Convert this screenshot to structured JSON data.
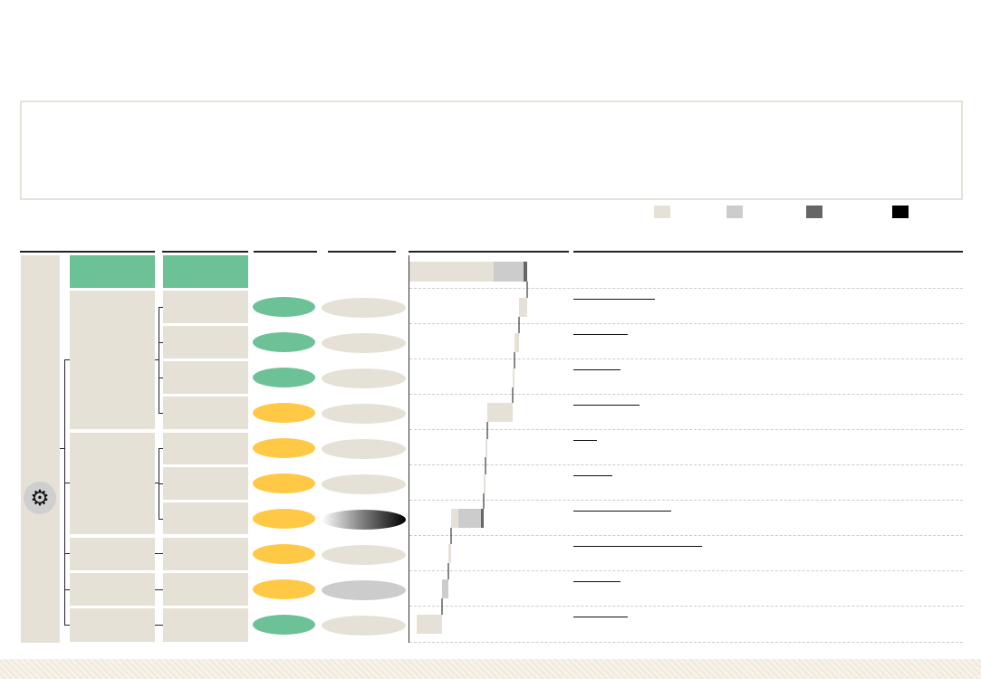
{
  "palette": {
    "green": "#6cc197",
    "yellow": "#ffc845",
    "beige": "#e6e1d6",
    "light_gray": "#cccccc",
    "dark_gray": "#666666",
    "black": "#000000"
  },
  "icons": {
    "gear": "gear-icon"
  },
  "legend": [
    {
      "color": "#e6e1d6"
    },
    {
      "color": "#cccccc"
    },
    {
      "color": "#666666"
    },
    {
      "color": "#000000"
    }
  ],
  "rows": [
    {
      "status": "#6cc197",
      "level": "#e6e1d6",
      "link_fraction": 0.21
    },
    {
      "status": "#6cc197",
      "level": "#e6e1d6",
      "link_fraction": 0.14
    },
    {
      "status": "#6cc197",
      "level": "#e6e1d6",
      "link_fraction": 0.12
    },
    {
      "status": "#ffc845",
      "level": "#e6e1d6",
      "link_fraction": 0.17
    },
    {
      "status": "#ffc845",
      "level": "#e6e1d6",
      "link_fraction": 0.06
    },
    {
      "status": "#ffc845",
      "level": "#e6e1d6",
      "link_fraction": 0.1
    },
    {
      "status": "#ffc845",
      "level": "gradient",
      "link_fraction": 0.25
    },
    {
      "status": "#ffc845",
      "level": "#e6e1d6",
      "link_fraction": 0.33
    },
    {
      "status": "#ffc845",
      "level": "#cccccc",
      "link_fraction": 0.12
    },
    {
      "status": "#6cc197",
      "level": "#e6e1d6",
      "link_fraction": 0.14
    }
  ],
  "chart_data": {
    "type": "bar",
    "orientation": "horizontal-waterfall",
    "total": {
      "segments": [
        {
          "color": "#e6e1d6",
          "value": 93
        },
        {
          "color": "#cccccc",
          "value": 33
        },
        {
          "color": "#666666",
          "value": 4
        }
      ]
    },
    "steps": [
      {
        "color": "#e6e1d6",
        "value": 9
      },
      {
        "color": "#e6e1d6",
        "value": 5
      },
      {
        "color": "#e6e1d6",
        "value": 2
      },
      {
        "color": "#e6e1d6",
        "value": 28
      },
      {
        "color": "#e6e1d6",
        "value": 2
      },
      {
        "color": "#e6e1d6",
        "value": 2
      },
      {
        "color": "mixed",
        "segments": [
          {
            "color": "#e6e1d6",
            "value": 8
          },
          {
            "color": "#cccccc",
            "value": 25
          },
          {
            "color": "#666666",
            "value": 3
          }
        ]
      },
      {
        "color": "#e6e1d6",
        "value": 3
      },
      {
        "color": "#cccccc",
        "value": 7
      },
      {
        "color": "#e6e1d6",
        "value": 28
      }
    ]
  }
}
